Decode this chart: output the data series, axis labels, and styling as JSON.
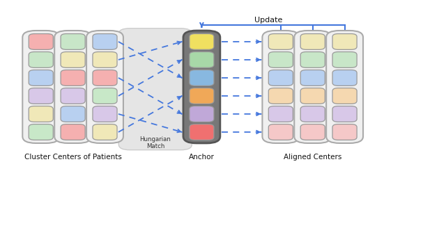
{
  "figsize": [
    6.4,
    3.28
  ],
  "dpi": 100,
  "bg_color": "#ffffff",
  "label_bottom": [
    "Cluster Centers of Patients",
    "Anchor",
    "Aligned Centers"
  ],
  "label_top": "Update",
  "label_hungarian": "Hungarian\nMatch",
  "col1_colors": [
    "#f5b0b0",
    "#c8e6c8",
    "#b8d0f0",
    "#d8c8e8",
    "#f0e8b8",
    "#c8e8c8"
  ],
  "col2_colors": [
    "#c8e6c8",
    "#f0e8b8",
    "#f5b0b0",
    "#d8c8e8",
    "#b8d0f0",
    "#f5b0b0"
  ],
  "col3_colors": [
    "#b8d0f0",
    "#f0e8b8",
    "#f5b0b0",
    "#c8e8c8",
    "#d8c8e8",
    "#f0e8b8"
  ],
  "anchor_colors": [
    "#f0e060",
    "#a8d8a8",
    "#88b8e0",
    "#f0a858",
    "#c0a8d8",
    "#f07070"
  ],
  "aligned1_colors": [
    "#f0e8b8",
    "#c8e6c8",
    "#b8d0f0",
    "#f5d8b0",
    "#d8c8e8",
    "#f5c8c8"
  ],
  "aligned2_colors": [
    "#f0e8b8",
    "#c8e6c8",
    "#b8d0f0",
    "#f5d8b0",
    "#d8c8e8",
    "#f5c8c8"
  ],
  "aligned3_colors": [
    "#f0e8b8",
    "#c8e6c8",
    "#b8d0f0",
    "#f5d8b0",
    "#d8c8e8",
    "#f5c8c8"
  ],
  "arrow_color": "#4477dd",
  "anchor_bg": "#787878",
  "col_bg": "#f0f0f0",
  "col_edge": "#aaaaaa",
  "anchor_edge": "#555555"
}
